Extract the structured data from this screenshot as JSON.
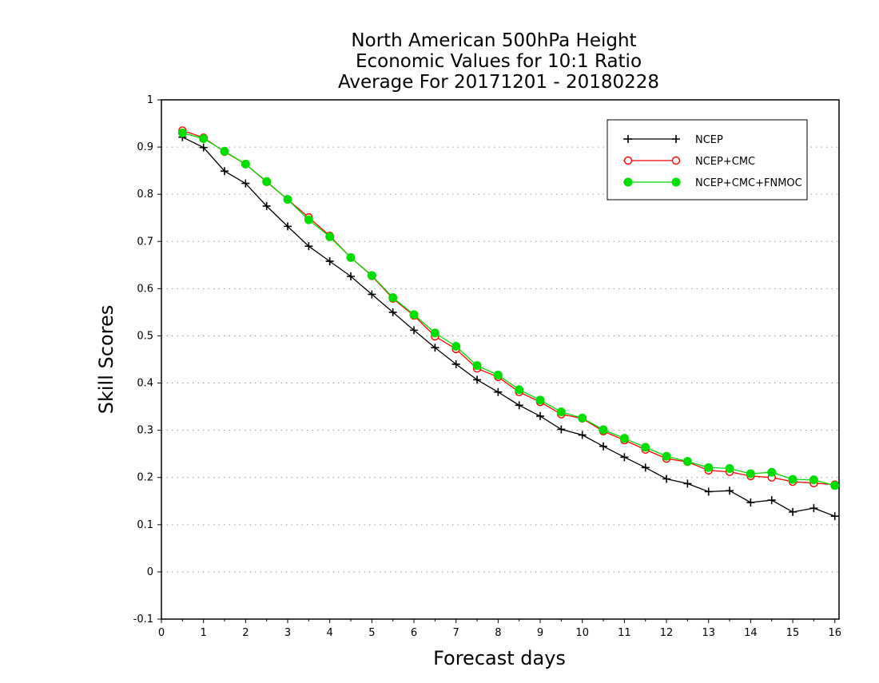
{
  "chart_data": {
    "type": "line",
    "title": [
      "North American 500hPa Height",
      "Economic Values for 10:1 Ratio",
      "Average For 20171201 - 20180228"
    ],
    "xlabel": "Forecast days",
    "ylabel": "Skill Scores",
    "xlim": [
      0,
      16.1
    ],
    "ylim": [
      -0.1,
      1
    ],
    "xticks": [
      0,
      1,
      2,
      3,
      4,
      5,
      6,
      7,
      8,
      9,
      10,
      11,
      12,
      13,
      14,
      15,
      16
    ],
    "yticks": [
      -0.1,
      0,
      0.1,
      0.2,
      0.3,
      0.4,
      0.5,
      0.6,
      0.7,
      0.8,
      0.9,
      1
    ],
    "ytick_labels": [
      "-0.1",
      "0",
      "0.1",
      "0.2",
      "0.3",
      "0.4",
      "0.5",
      "0.6",
      "0.7",
      "0.8",
      "0.9",
      "1"
    ],
    "grid": "dotted horizontal",
    "legend_position": "top-right",
    "x": [
      0.5,
      1,
      1.5,
      2,
      2.5,
      3,
      3.5,
      4,
      4.5,
      5,
      5.5,
      6,
      6.5,
      7,
      7.5,
      8,
      8.5,
      9,
      9.5,
      10,
      10.5,
      11,
      11.5,
      12,
      12.5,
      13,
      13.5,
      14,
      14.5,
      15,
      15.5,
      16
    ],
    "series": [
      {
        "name": "NCEP",
        "color": "#000000",
        "marker": "plus",
        "values": [
          0.921,
          0.899,
          0.849,
          0.823,
          0.775,
          0.732,
          0.69,
          0.658,
          0.626,
          0.588,
          0.55,
          0.512,
          0.475,
          0.44,
          0.407,
          0.381,
          0.353,
          0.33,
          0.302,
          0.29,
          0.266,
          0.243,
          0.221,
          0.197,
          0.187,
          0.17,
          0.172,
          0.147,
          0.152,
          0.127,
          0.135,
          0.118
        ]
      },
      {
        "name": "NCEP+CMC",
        "color": "#ff0000",
        "marker": "open-circle",
        "values": [
          0.935,
          0.92,
          0.89,
          0.864,
          0.826,
          0.789,
          0.751,
          0.712,
          0.666,
          0.627,
          0.579,
          0.543,
          0.499,
          0.472,
          0.431,
          0.413,
          0.381,
          0.36,
          0.334,
          0.325,
          0.298,
          0.279,
          0.259,
          0.24,
          0.233,
          0.215,
          0.212,
          0.203,
          0.2,
          0.191,
          0.188,
          0.185
        ]
      },
      {
        "name": "NCEP+CMC+FNMOC",
        "color": "#00dd00",
        "marker": "filled-circle",
        "values": [
          0.93,
          0.918,
          0.891,
          0.864,
          0.827,
          0.789,
          0.746,
          0.71,
          0.666,
          0.628,
          0.581,
          0.545,
          0.506,
          0.478,
          0.437,
          0.417,
          0.386,
          0.364,
          0.339,
          0.326,
          0.301,
          0.283,
          0.264,
          0.245,
          0.234,
          0.221,
          0.219,
          0.208,
          0.211,
          0.196,
          0.195,
          0.183
        ]
      }
    ]
  }
}
